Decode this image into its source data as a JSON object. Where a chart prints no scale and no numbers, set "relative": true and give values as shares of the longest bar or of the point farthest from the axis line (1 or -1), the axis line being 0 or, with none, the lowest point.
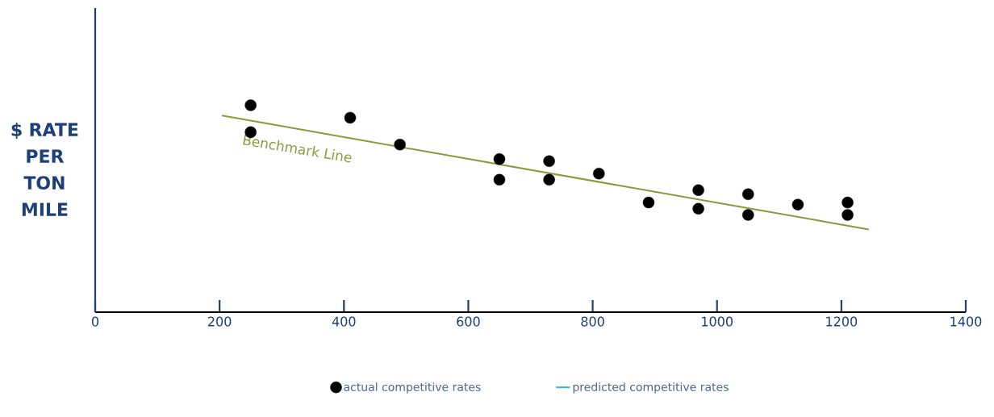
{
  "chart_data": {
    "type": "scatter",
    "ylabel": "$ RATE PER TON MILE",
    "relative": true,
    "legend": "bottom",
    "grid": false,
    "xlim": [
      0,
      1400
    ],
    "xticks": [
      0,
      200,
      400,
      600,
      800,
      1000,
      1200,
      1400
    ],
    "annotations": [
      {
        "text": "Benchmark Line",
        "x": 330,
        "y": 0.88
      }
    ],
    "series": [
      {
        "name": "actual competitive rates",
        "color": "#000000",
        "marker": "circle",
        "x": [
          250,
          250,
          410,
          490,
          650,
          650,
          730,
          730,
          810,
          890,
          970,
          970,
          1050,
          1050,
          1130,
          1210,
          1210
        ],
        "values": [
          1.0,
          0.87,
          0.94,
          0.81,
          0.74,
          0.64,
          0.73,
          0.64,
          0.67,
          0.53,
          0.59,
          0.5,
          0.57,
          0.47,
          0.52,
          0.53,
          0.47
        ]
      },
      {
        "color": "#8a9a3c",
        "type": "line",
        "marker": "none",
        "x": [
          204,
          1244
        ],
        "values": [
          0.95,
          0.4
        ]
      },
      {
        "name": "predicted competitive rates",
        "color": "#3bb0d8",
        "type": "line",
        "marker": "none"
      }
    ]
  }
}
